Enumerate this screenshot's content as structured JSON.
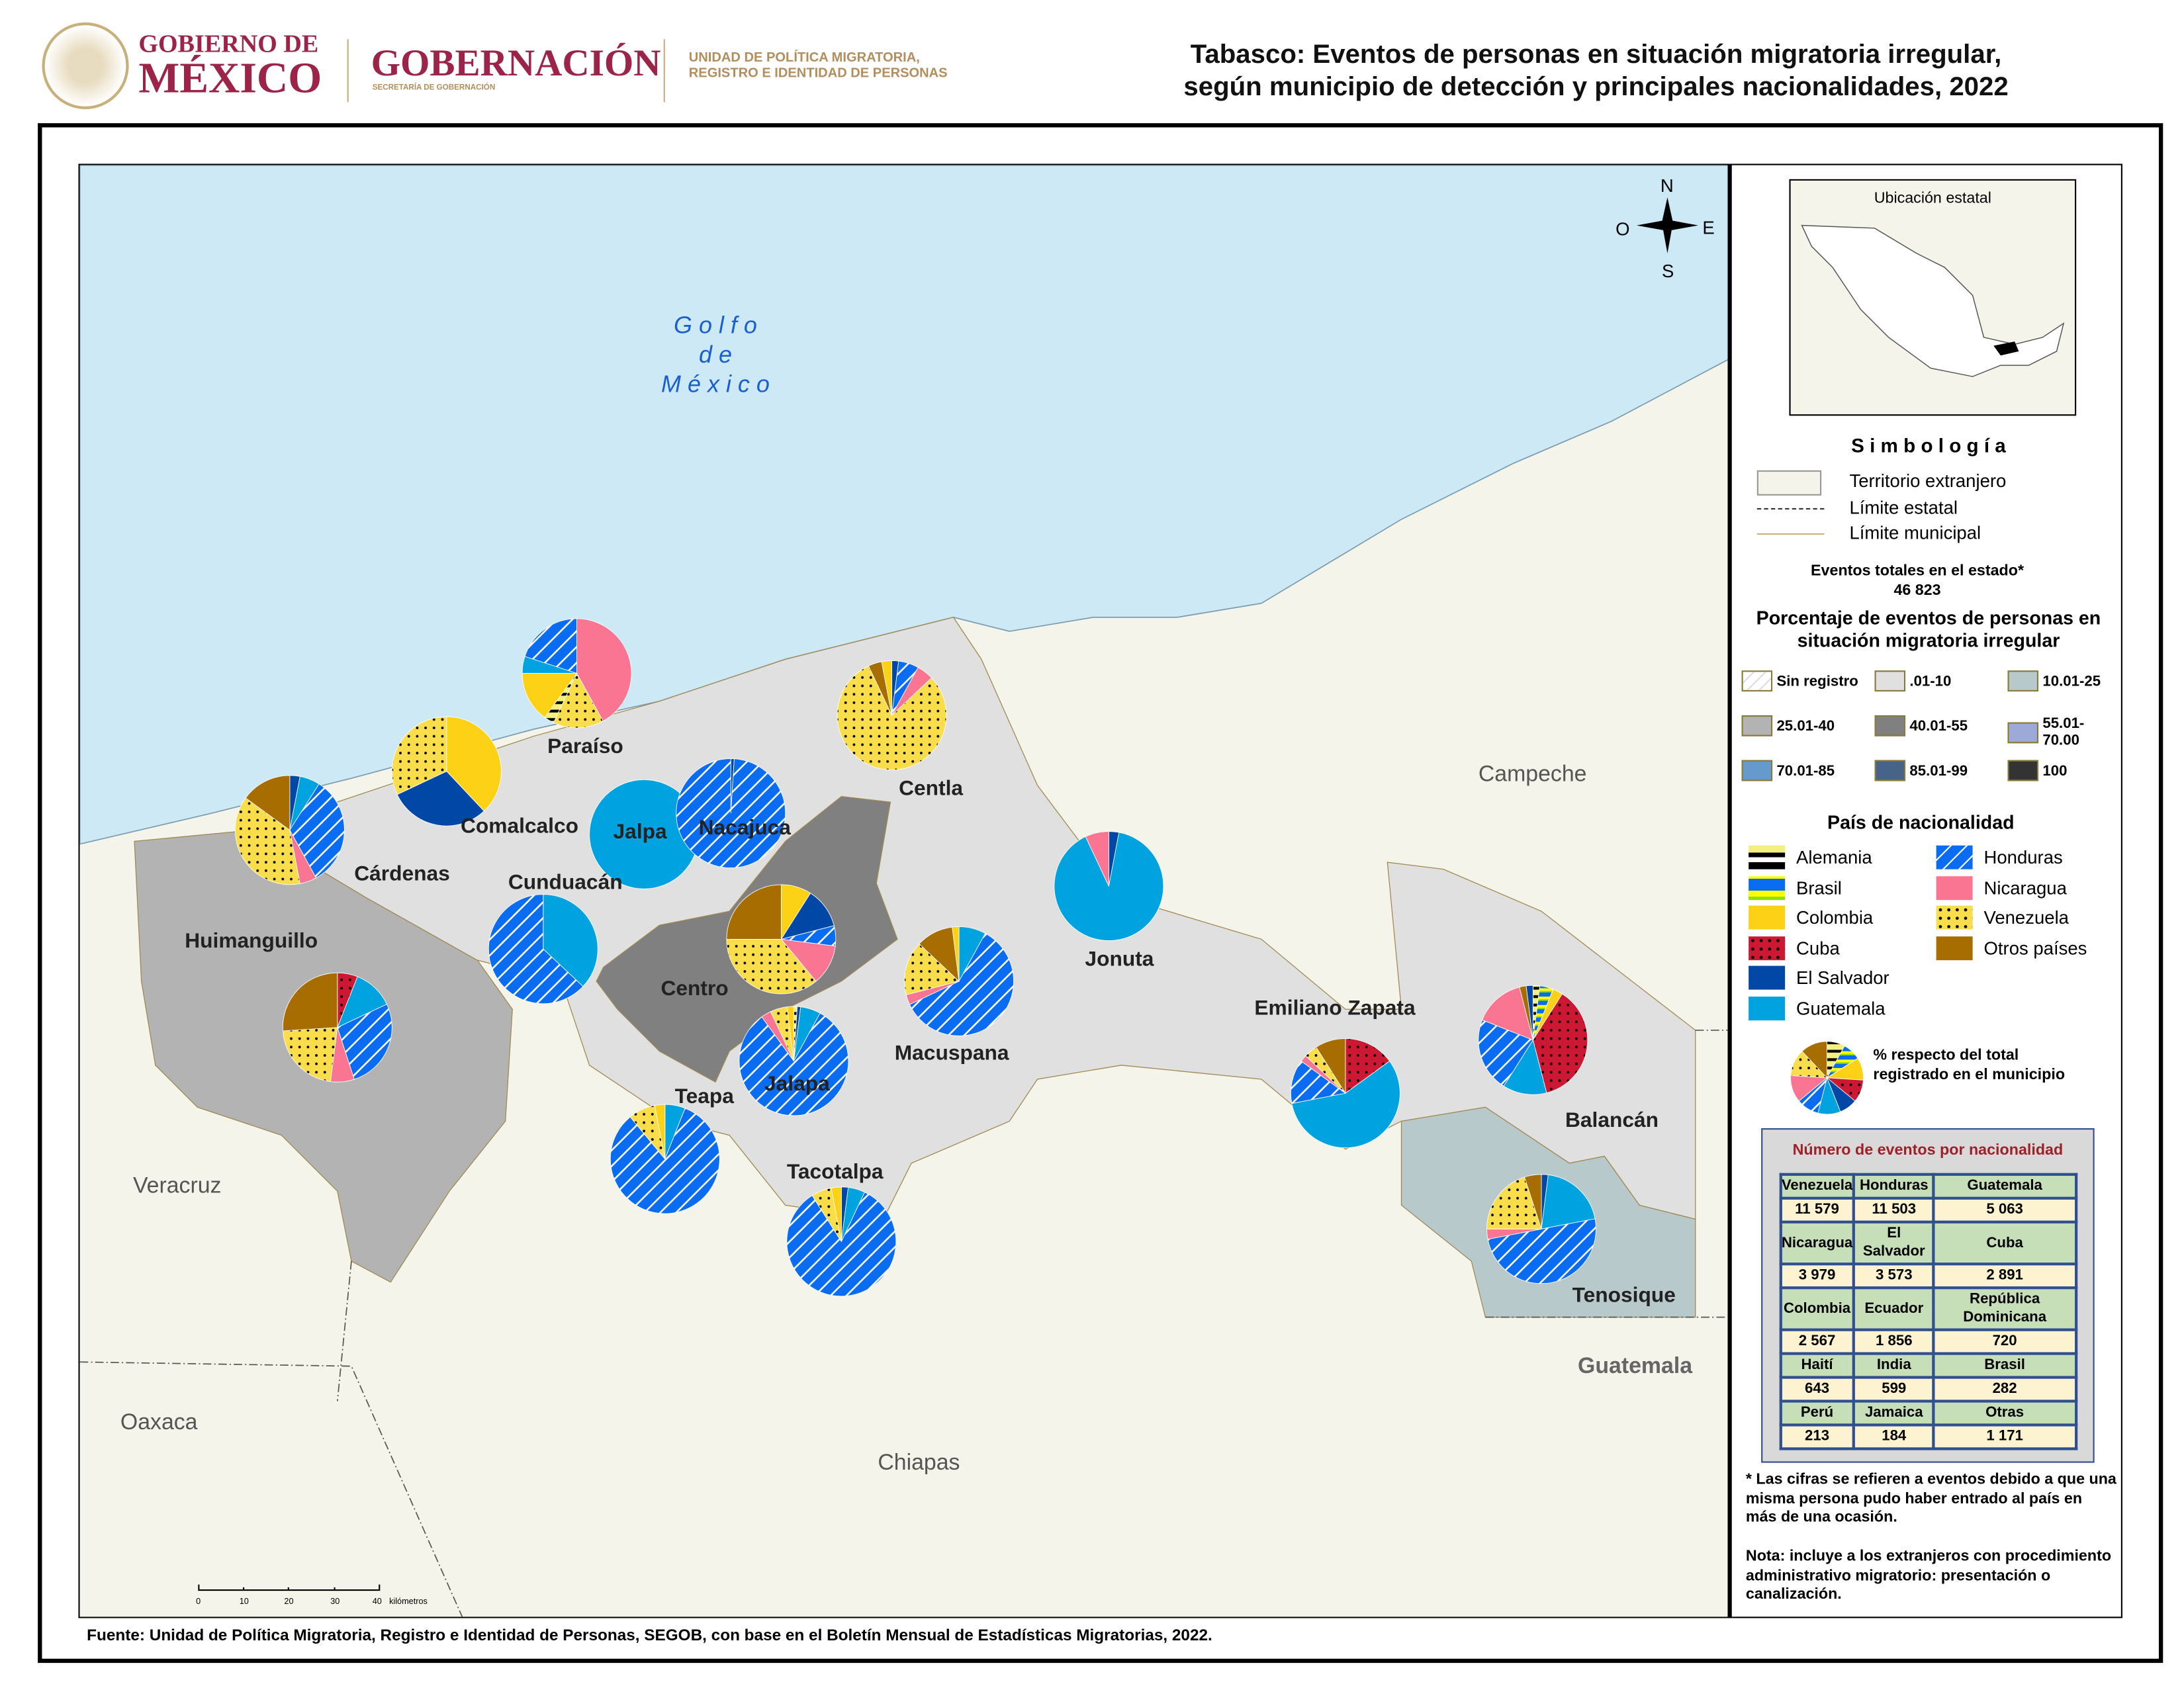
{
  "header": {
    "logo1_line1": "GOBIERNO DE",
    "logo1_line2": "MÉXICO",
    "seal_text": "ESTADOS UNIDOS MEXICANOS",
    "logo2_title": "GOBERNACIÓN",
    "logo2_sub": "SECRETARÍA DE GOBERNACIÓN",
    "logo3_line1": "UNIDAD DE POLÍTICA MIGRATORIA,",
    "logo3_line2": "REGISTRO E IDENTIDAD DE PERSONAS",
    "title_line1": "Tabasco: Eventos de personas en situación migratoria irregular,",
    "title_line2": "según municipio de detección y principales nacionalidades, 2022"
  },
  "map": {
    "sea_label": [
      "G o l f o",
      "d e",
      "M é x i c o"
    ],
    "neighbors": {
      "campeche": "Campeche",
      "veracruz": "Veracruz",
      "oaxaca": "Oaxaca",
      "chiapas": "Chiapas",
      "guatemala": "Guatemala"
    },
    "compass": {
      "n": "N",
      "s": "S",
      "e": "E",
      "o": "O"
    },
    "scale": {
      "ticks": [
        "0",
        "10",
        "20",
        "30",
        "40"
      ],
      "unit": "kilómetros"
    },
    "colors": {
      "sea": "#cde9f6",
      "foreign": "#f4f4ea",
      "r01_10": "#e0e0e0",
      "r10_25": "#b8c9cb",
      "r25_40": "#b3b3b3",
      "r40_55": "#808080"
    }
  },
  "municipios": [
    {
      "name": "Paraíso",
      "slices": [
        [
          "Nicaragua",
          0.42
        ],
        [
          "Venezuela",
          0.15
        ],
        [
          "Alemania",
          0.03
        ],
        [
          "Colombia",
          0.15
        ],
        [
          "Guatemala",
          0.05
        ],
        [
          "Honduras",
          0.2
        ]
      ]
    },
    {
      "name": "Comalcalco",
      "slices": [
        [
          "Colombia",
          0.38
        ],
        [
          "El Salvador",
          0.3
        ],
        [
          "Venezuela",
          0.32
        ]
      ]
    },
    {
      "name": "Cárdenas",
      "slices": [
        [
          "El Salvador",
          0.03
        ],
        [
          "Guatemala",
          0.06
        ],
        [
          "Honduras",
          0.33
        ],
        [
          "Nicaragua",
          0.05
        ],
        [
          "Venezuela",
          0.38
        ],
        [
          "Otros países",
          0.15
        ]
      ]
    },
    {
      "name": "Jalpa",
      "slices": [
        [
          "Guatemala",
          1.0
        ]
      ]
    },
    {
      "name": "Nacajuca",
      "slices": [
        [
          "El Salvador",
          0.01
        ],
        [
          "Honduras",
          0.99
        ]
      ]
    },
    {
      "name": "Centla",
      "slices": [
        [
          "El Salvador",
          0.02
        ],
        [
          "Honduras",
          0.06
        ],
        [
          "Nicaragua",
          0.05
        ],
        [
          "Venezuela",
          0.8
        ],
        [
          "Otros países",
          0.04
        ],
        [
          "Colombia",
          0.03
        ]
      ]
    },
    {
      "name": "Cunduacán",
      "slices": [
        [
          "Guatemala",
          0.37
        ],
        [
          "Honduras",
          0.63
        ]
      ]
    },
    {
      "name": "Centro",
      "slices": [
        [
          "Colombia",
          0.09
        ],
        [
          "El Salvador",
          0.12
        ],
        [
          "Honduras",
          0.06
        ],
        [
          "Nicaragua",
          0.12
        ],
        [
          "Venezuela",
          0.36
        ],
        [
          "Otros países",
          0.25
        ]
      ]
    },
    {
      "name": "Macuspana",
      "slices": [
        [
          "Guatemala",
          0.08
        ],
        [
          "Honduras",
          0.6
        ],
        [
          "Nicaragua",
          0.03
        ],
        [
          "Venezuela",
          0.16
        ],
        [
          "Otros países",
          0.11
        ],
        [
          "Colombia",
          0.02
        ]
      ]
    },
    {
      "name": "Jonuta",
      "slices": [
        [
          "El Salvador",
          0.03
        ],
        [
          "Guatemala",
          0.9
        ],
        [
          "Nicaragua",
          0.07
        ]
      ]
    },
    {
      "name": "Jalapa",
      "slices": [
        [
          "Alemania",
          0.01
        ],
        [
          "El Salvador",
          0.01
        ],
        [
          "Guatemala",
          0.06
        ],
        [
          "Honduras",
          0.82
        ],
        [
          "Nicaragua",
          0.03
        ],
        [
          "Venezuela",
          0.05
        ],
        [
          "Colombia",
          0.02
        ]
      ]
    },
    {
      "name": "Teapa",
      "slices": [
        [
          "Guatemala",
          0.06
        ],
        [
          "Honduras",
          0.83
        ],
        [
          "Venezuela",
          0.08
        ],
        [
          "Colombia",
          0.03
        ]
      ]
    },
    {
      "name": "Tacotalpa",
      "slices": [
        [
          "El Salvador",
          0.02
        ],
        [
          "Guatemala",
          0.05
        ],
        [
          "Honduras",
          0.84
        ],
        [
          "Venezuela",
          0.06
        ],
        [
          "Colombia",
          0.03
        ]
      ]
    },
    {
      "name": "Emiliano Zapata",
      "slices": [
        [
          "Cuba",
          0.15
        ],
        [
          "Guatemala",
          0.57
        ],
        [
          "Honduras",
          0.13
        ],
        [
          "Nicaragua",
          0.02
        ],
        [
          "Venezuela",
          0.04
        ],
        [
          "Otros países",
          0.09
        ]
      ]
    },
    {
      "name": "Balancán",
      "slices": [
        [
          "Alemania",
          0.02
        ],
        [
          "Brasil",
          0.04
        ],
        [
          "Colombia",
          0.03
        ],
        [
          "Cuba",
          0.37
        ],
        [
          "Guatemala",
          0.13
        ],
        [
          "Honduras",
          0.22
        ],
        [
          "Nicaragua",
          0.15
        ],
        [
          "Otros países",
          0.02
        ],
        [
          "El Salvador",
          0.02
        ]
      ]
    },
    {
      "name": "Tenosique",
      "slices": [
        [
          "El Salvador",
          0.02
        ],
        [
          "Guatemala",
          0.2
        ],
        [
          "Honduras",
          0.5
        ],
        [
          "Nicaragua",
          0.03
        ],
        [
          "Venezuela",
          0.2
        ],
        [
          "Otros países",
          0.05
        ]
      ]
    },
    {
      "name": "Huimanguillo",
      "slices": [
        [
          "Cuba",
          0.06
        ],
        [
          "Guatemala",
          0.12
        ],
        [
          "Honduras",
          0.27
        ],
        [
          "Nicaragua",
          0.07
        ],
        [
          "Venezuela",
          0.22
        ],
        [
          "Otros países",
          0.26
        ]
      ]
    }
  ],
  "legend": {
    "inset_title": "Ubicación estatal",
    "simbologia": "S i m b o l o g í a",
    "symbols": [
      "Territorio extranjero",
      "Límite estatal",
      "Límite municipal"
    ],
    "total_label": "Eventos totales en el estado*",
    "total_value": "46 823",
    "pct_title_1": "Porcentaje de eventos de personas en",
    "pct_title_2": "situación migratoria irregular",
    "ranges": [
      {
        "label": "Sin registro",
        "color": "#ffffff"
      },
      {
        "label": ".01-10",
        "color": "#e0e0e0"
      },
      {
        "label": "10.01-25",
        "color": "#b8c9cb"
      },
      {
        "label": "25.01-40",
        "color": "#b3b3b3"
      },
      {
        "label": "40.01-55",
        "color": "#808080"
      },
      {
        "label": "55.01-70.00",
        "color": "#9da9d6"
      },
      {
        "label": "70.01-85",
        "color": "#6699cc"
      },
      {
        "label": "85.01-99",
        "color": "#476388"
      },
      {
        "label": "100",
        "color": "#333333"
      }
    ],
    "nat_title": "País de nacionalidad",
    "nationalities": [
      {
        "label": "Alemania",
        "color": "#f4f080"
      },
      {
        "label": "Brasil",
        "color": "#0a6cf0"
      },
      {
        "label": "Colombia",
        "color": "#fcd116"
      },
      {
        "label": "Cuba",
        "color": "#cc1833"
      },
      {
        "label": "El Salvador",
        "color": "#0047a6"
      },
      {
        "label": "Guatemala",
        "color": "#00a3e0"
      },
      {
        "label": "Honduras",
        "color": "#0a6cf0"
      },
      {
        "label": "Nicaragua",
        "color": "#f97592"
      },
      {
        "label": "Venezuela",
        "color": "#fadd4a"
      },
      {
        "label": "Otros países",
        "color": "#a86d00"
      }
    ],
    "pie_note_1": "%  respecto del total",
    "pie_note_2": "registrado en el municipio"
  },
  "table": {
    "title": "Número de eventos por nacionalidad",
    "rows": [
      {
        "names": [
          "Venezuela",
          "Honduras",
          "Guatemala"
        ],
        "values": [
          "11 579",
          "11 503",
          "5 063"
        ]
      },
      {
        "names": [
          "Nicaragua",
          "El Salvador",
          "Cuba"
        ],
        "values": [
          "3 979",
          "3 573",
          "2 891"
        ]
      },
      {
        "names": [
          "Colombia",
          "Ecuador",
          "República Dominicana"
        ],
        "values": [
          "2 567",
          "1 856",
          "720"
        ]
      },
      {
        "names": [
          "Haití",
          "India",
          "Brasil"
        ],
        "values": [
          "643",
          "599",
          "282"
        ]
      },
      {
        "names": [
          "Perú",
          "Jamaica",
          "Otras"
        ],
        "values": [
          "213",
          "184",
          "1 171"
        ]
      }
    ]
  },
  "notes": {
    "asterisk": "* Las cifras se refieren a eventos debido a que una misma persona pudo haber entrado al país en más de una ocasión.",
    "nota": "Nota: incluye a los extranjeros con procedimiento administrativo migratorio: presentación o canalización."
  },
  "source": "Fuente: Unidad de Política Migratoria, Registro e Identidad de Personas, SEGOB, con base en el Boletín Mensual de Estadísticas Migratorias, 2022."
}
